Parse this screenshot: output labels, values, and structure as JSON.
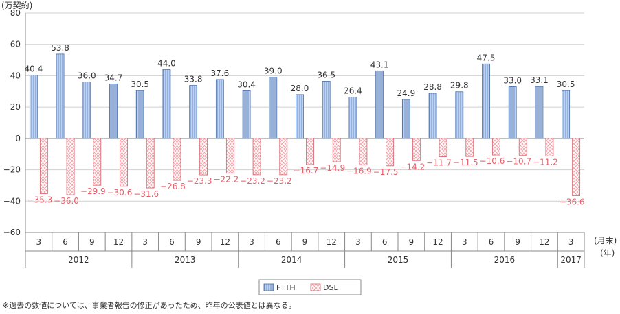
{
  "chart_data": {
    "type": "bar",
    "y_unit_label": "(万契約)",
    "ylim": [
      -60,
      80
    ],
    "yticks": [
      80,
      60,
      40,
      20,
      0,
      -20,
      -40,
      -60
    ],
    "ytick_labels": [
      "80",
      "60",
      "40",
      "20",
      "0",
      "−20",
      "−40",
      "−60"
    ],
    "x_month_unit_label": "(月末)",
    "x_year_unit_label": "(年)",
    "categories": [
      "3",
      "6",
      "9",
      "12",
      "3",
      "6",
      "9",
      "12",
      "3",
      "6",
      "9",
      "12",
      "3",
      "6",
      "9",
      "12",
      "3",
      "6",
      "9",
      "12",
      "3"
    ],
    "year_groups": [
      {
        "label": "2012",
        "count": 4
      },
      {
        "label": "2013",
        "count": 4
      },
      {
        "label": "2014",
        "count": 4
      },
      {
        "label": "2015",
        "count": 4
      },
      {
        "label": "2016",
        "count": 4
      },
      {
        "label": "2017",
        "count": 1
      }
    ],
    "series": [
      {
        "name": "FTTH",
        "color": "#8fb0e0",
        "pattern": "vertical-lines",
        "values": [
          40.4,
          53.8,
          36.0,
          34.7,
          30.5,
          44.0,
          33.8,
          37.6,
          30.4,
          39.0,
          28.0,
          36.5,
          26.4,
          43.1,
          24.9,
          28.8,
          29.8,
          47.5,
          33.0,
          33.1,
          30.5
        ],
        "value_labels": [
          "40.4",
          "53.8",
          "36.0",
          "34.7",
          "30.5",
          "44.0",
          "33.8",
          "37.6",
          "30.4",
          "39.0",
          "28.0",
          "36.5",
          "26.4",
          "43.1",
          "24.9",
          "28.8",
          "29.8",
          "47.5",
          "33.0",
          "33.1",
          "30.5"
        ]
      },
      {
        "name": "DSL",
        "color": "#e8606a",
        "pattern": "crosshatch",
        "values": [
          -35.3,
          -36.0,
          -29.9,
          -30.6,
          -31.6,
          -26.8,
          -23.3,
          -22.2,
          -23.2,
          -23.2,
          -16.7,
          -14.9,
          -16.9,
          -17.5,
          -14.2,
          -11.7,
          -11.5,
          -10.6,
          -10.7,
          -11.2,
          -36.6
        ],
        "value_labels": [
          "−35.3",
          "−36.0",
          "−29.9",
          "−30.6",
          "−31.6",
          "−26.8",
          "−23.3",
          "−22.2",
          "−23.2",
          "−23.2",
          "−16.7",
          "−14.9",
          "−16.9",
          "−17.5",
          "−14.2",
          "−11.7",
          "−11.5",
          "−10.6",
          "−10.7",
          "−11.2",
          "−36.6"
        ]
      }
    ],
    "grid": true,
    "legend_position": "bottom-center",
    "footnote": "※過去の数値については、事業者報告の修正があったため、昨年の公表値とは異なる。"
  }
}
